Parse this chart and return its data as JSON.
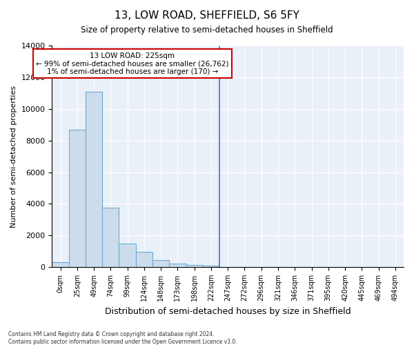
{
  "title": "13, LOW ROAD, SHEFFIELD, S6 5FY",
  "subtitle": "Size of property relative to semi-detached houses in Sheffield",
  "xlabel": "Distribution of semi-detached houses by size in Sheffield",
  "ylabel": "Number of semi-detached properties",
  "bar_color": "#ccdcec",
  "bar_edge_color": "#6aaad4",
  "background_color": "#eaf0f8",
  "ylim": [
    0,
    14000
  ],
  "yticks": [
    0,
    2000,
    4000,
    6000,
    8000,
    10000,
    12000,
    14000
  ],
  "categories": [
    "0sqm",
    "25sqm",
    "49sqm",
    "74sqm",
    "99sqm",
    "124sqm",
    "148sqm",
    "173sqm",
    "198sqm",
    "222sqm",
    "247sqm",
    "272sqm",
    "296sqm",
    "321sqm",
    "346sqm",
    "371sqm",
    "395sqm",
    "420sqm",
    "445sqm",
    "469sqm",
    "494sqm"
  ],
  "values": [
    300,
    8700,
    11100,
    3750,
    1500,
    950,
    430,
    220,
    130,
    90,
    0,
    0,
    0,
    0,
    0,
    0,
    0,
    0,
    0,
    0,
    0
  ],
  "vline_pos": 9.5,
  "vline_color": "#4472c4",
  "annotation_title": "13 LOW ROAD: 225sqm",
  "annotation_line1": "← 99% of semi-detached houses are smaller (26,762)",
  "annotation_line2": "1% of semi-detached houses are larger (170) →",
  "annotation_box_color": "#ffffff",
  "annotation_box_edge": "#cc0000",
  "footer_line1": "Contains HM Land Registry data © Crown copyright and database right 2024.",
  "footer_line2": "Contains public sector information licensed under the Open Government Licence v3.0."
}
